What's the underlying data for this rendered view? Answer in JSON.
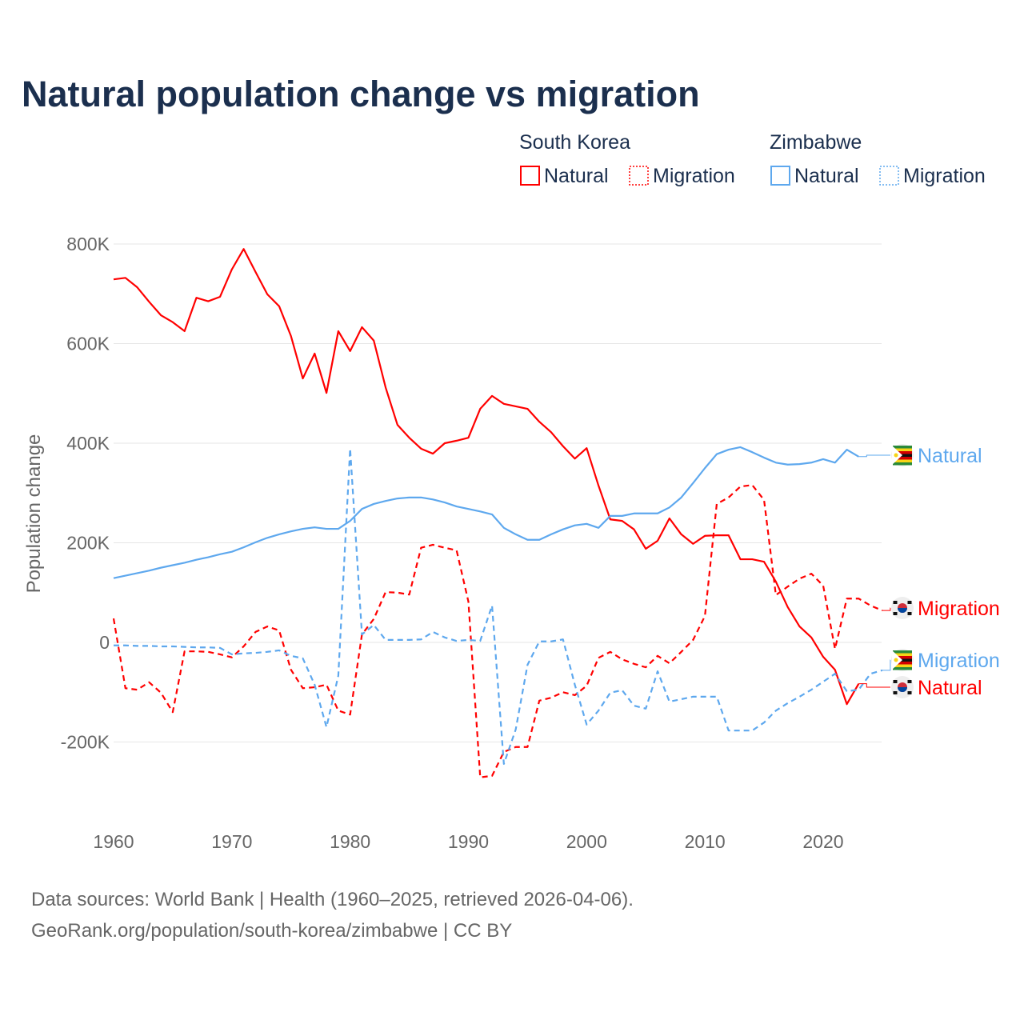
{
  "chart_data": {
    "type": "line",
    "title": "Natural population change vs migration",
    "xlabel": "",
    "ylabel": "Population change",
    "xlim": [
      1960,
      2025
    ],
    "ylim": [
      -300000,
      850000
    ],
    "x_ticks": [
      "1960",
      "1970",
      "1980",
      "1990",
      "2000",
      "2010",
      "2020"
    ],
    "y_ticks": [
      {
        "v": 800000,
        "label": "800K"
      },
      {
        "v": 600000,
        "label": "600K"
      },
      {
        "v": 400000,
        "label": "400K"
      },
      {
        "v": 200000,
        "label": "200K"
      },
      {
        "v": 0,
        "label": "0"
      },
      {
        "v": -200000,
        "label": "-200K"
      }
    ],
    "grid": true,
    "legend": {
      "placement": "top-right",
      "groups": [
        {
          "country": "South Korea",
          "items": [
            "Natural",
            "Migration"
          ]
        },
        {
          "country": "Zimbabwe",
          "items": [
            "Natural",
            "Migration"
          ]
        }
      ]
    },
    "series": [
      {
        "name": "South Korea Natural",
        "country": "South Korea",
        "kind": "Natural",
        "color": "#ff0000",
        "dash": false,
        "start_year": 1960,
        "end_label": "Natural",
        "flag": "south-korea",
        "values": [
          729,
          732,
          713,
          684,
          657,
          643,
          625,
          692,
          685,
          694,
          749,
          790,
          744,
          699,
          675,
          615,
          530,
          580,
          501,
          625,
          585,
          633,
          606,
          512,
          437,
          411,
          389,
          379,
          400,
          405,
          411,
          469,
          495,
          479,
          474,
          469,
          443,
          422,
          394,
          369,
          390,
          315,
          247,
          244,
          227,
          188,
          204,
          249,
          217,
          198,
          214,
          215,
          215,
          167,
          167,
          162,
          122,
          71,
          32,
          10,
          -29,
          -55,
          -124,
          -83
        ]
      },
      {
        "name": "South Korea Migration",
        "country": "South Korea",
        "kind": "Migration",
        "color": "#ff0000",
        "dash": true,
        "start_year": 1960,
        "end_label": "Migration",
        "flag": "south-korea",
        "values": [
          48,
          -92,
          -95,
          -80,
          -101,
          -140,
          -18,
          -18,
          -19,
          -24,
          -30,
          -8,
          21,
          32,
          24,
          -55,
          -92,
          -90,
          -85,
          -137,
          -145,
          16,
          47,
          101,
          100,
          96,
          190,
          196,
          190,
          185,
          82,
          -271,
          -268,
          -220,
          -210,
          -210,
          -117,
          -111,
          -100,
          -106,
          -87,
          -31,
          -19,
          -34,
          -43,
          -50,
          -27,
          -42,
          -19,
          5,
          53,
          278,
          291,
          313,
          316,
          286,
          95,
          112,
          128,
          138,
          114,
          -13,
          88,
          88,
          74,
          64
        ]
      },
      {
        "name": "Zimbabwe Natural",
        "country": "Zimbabwe",
        "kind": "Natural",
        "color": "#5ea8ee",
        "dash": false,
        "start_year": 1960,
        "end_label": "Natural",
        "flag": "zimbabwe",
        "values": [
          129,
          134,
          139,
          144,
          150,
          155,
          160,
          166,
          171,
          177,
          182,
          191,
          201,
          210,
          217,
          223,
          228,
          231,
          228,
          228,
          244,
          268,
          278,
          284,
          289,
          291,
          291,
          287,
          281,
          273,
          268,
          263,
          257,
          230,
          217,
          206,
          206,
          217,
          227,
          235,
          238,
          230,
          254,
          254,
          259,
          259,
          259,
          271,
          291,
          320,
          350,
          378,
          387,
          392,
          382,
          371,
          361,
          357,
          358,
          361,
          368,
          361,
          387,
          373
        ]
      },
      {
        "name": "Zimbabwe Migration",
        "country": "Zimbabwe",
        "kind": "Migration",
        "color": "#5ea8ee",
        "dash": true,
        "start_year": 1960,
        "end_label": "Migration",
        "flag": "zimbabwe",
        "values": [
          -6,
          -6,
          -7,
          -7,
          -8,
          -8,
          -9,
          -10,
          -10,
          -11,
          -24,
          -22,
          -21,
          -19,
          -16,
          -27,
          -32,
          -85,
          -170,
          -67,
          389,
          16,
          35,
          5,
          5,
          5,
          6,
          21,
          10,
          3,
          5,
          3,
          74,
          -244,
          -175,
          -45,
          2,
          2,
          6,
          -85,
          -165,
          -137,
          -101,
          -96,
          -127,
          -133,
          -58,
          -119,
          -114,
          -109,
          -109,
          -109,
          -177,
          -177,
          -177,
          -161,
          -137,
          -122,
          -109,
          -95,
          -79,
          -63,
          -98,
          -95,
          -63,
          -56
        ]
      }
    ],
    "units": "thousands"
  },
  "footer": {
    "line1": "Data sources: World Bank | Health (1960–2025, retrieved 2026-04-06).",
    "line2": "GeoRank.org/population/south-korea/zimbabwe | CC BY"
  }
}
